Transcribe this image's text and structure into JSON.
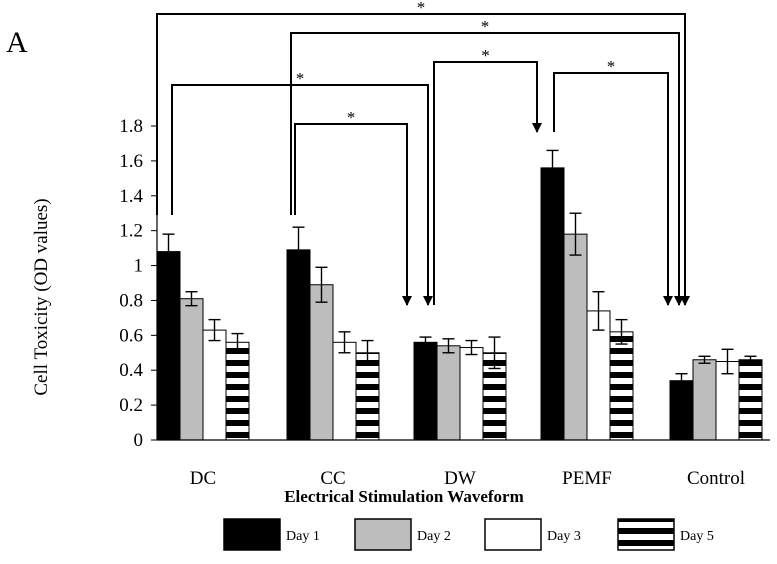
{
  "chart_data": {
    "type": "bar",
    "panel_label": "A",
    "title": "",
    "xlabel": "Electrical Stimulation Waveform",
    "ylabel": "Cell Toxicity (OD values)",
    "ylim": [
      0,
      1.8
    ],
    "yticks": [
      0,
      0.2,
      0.4,
      0.6,
      0.8,
      1,
      1.2,
      1.4,
      1.6,
      1.8
    ],
    "ytick_labels": [
      "0",
      "0.2",
      "0.4",
      "0.6",
      "0.8",
      "1",
      "1.2",
      "1.4",
      "1.6",
      "1.8"
    ],
    "categories": [
      "DC",
      "CC",
      "DW",
      "PEMF",
      "Control"
    ],
    "grid": false,
    "legend_position": "bottom",
    "series": [
      {
        "name": "Day 1",
        "style": "solid-black",
        "values": [
          1.08,
          1.09,
          0.56,
          1.56,
          0.34
        ],
        "errors": [
          0.1,
          0.13,
          0.03,
          0.1,
          0.04
        ]
      },
      {
        "name": "Day 2",
        "style": "solid-gray",
        "values": [
          0.81,
          0.89,
          0.54,
          1.18,
          0.46
        ],
        "errors": [
          0.04,
          0.1,
          0.04,
          0.12,
          0.02
        ]
      },
      {
        "name": "Day 3",
        "style": "white",
        "values": [
          0.63,
          0.56,
          0.53,
          0.74,
          0.45
        ],
        "errors": [
          0.06,
          0.06,
          0.04,
          0.11,
          0.07
        ]
      },
      {
        "name": "Day 5",
        "style": "horizontal-stripes",
        "values": [
          0.56,
          0.5,
          0.5,
          0.62,
          0.46
        ],
        "errors": [
          0.05,
          0.07,
          0.09,
          0.07,
          0.02
        ]
      }
    ],
    "annotations": [
      {
        "text": "*",
        "from": "DC Day 1",
        "to": "Control Day 1"
      },
      {
        "text": "*",
        "from": "CC Day 1",
        "to": "Control Day 1"
      },
      {
        "text": "*",
        "from": "DC Day 1",
        "to": "DW Day 1"
      },
      {
        "text": "*",
        "from": "DW Day 1",
        "to": "PEMF Day 1"
      },
      {
        "text": "*",
        "from": "CC Day 1",
        "to": "DW Day 1"
      },
      {
        "text": "*",
        "from": "PEMF Day 1",
        "to": "Control Day 1"
      }
    ],
    "colors": {
      "day1": "#000000",
      "day2": "#bdbdbd",
      "day3": "#ffffff",
      "day5_stripe": "#000000",
      "axis": "#000000"
    }
  }
}
